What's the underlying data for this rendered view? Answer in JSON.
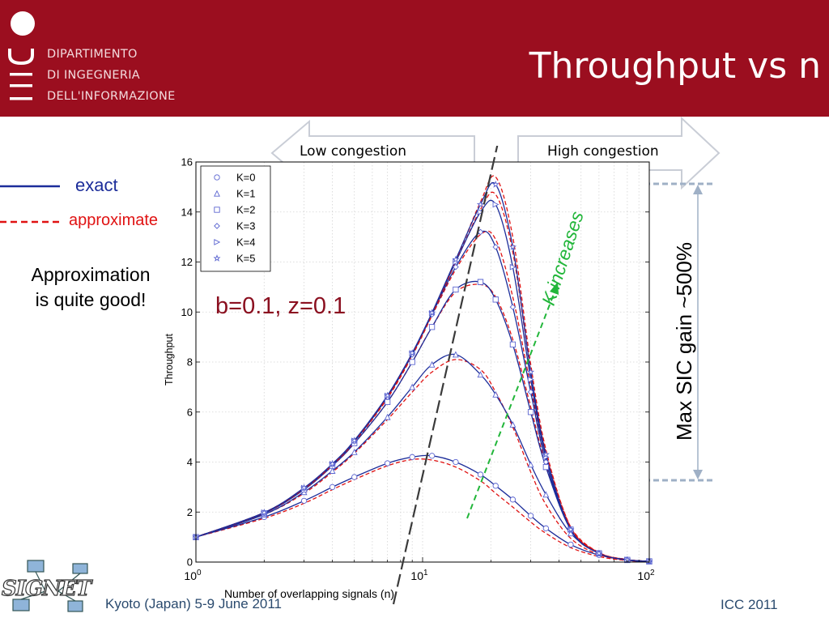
{
  "header": {
    "dept_lines": [
      "DIPARTIMENTO",
      "DI INGEGNERIA",
      "DELL'INFORMAZIONE"
    ],
    "title": "Throughput vs n"
  },
  "regions": {
    "low": "Low congestion",
    "high": "High congestion"
  },
  "legend_side": {
    "exact": "exact",
    "approximate": "approximate"
  },
  "note": {
    "line1": "Approximation",
    "line2": "is quite good!"
  },
  "params": "b=0.1, z=0.1",
  "k_label": "K increases",
  "gain_label": "Max SIC gain ~500%",
  "footer": {
    "left": "Kyoto (Japan) 5-9 June 2011",
    "right": "ICC 2011",
    "logo_text": "SIGNET"
  },
  "colors": {
    "header": "#9b0e1f",
    "exact": "#1c2d9a",
    "approximate": "#e01212",
    "k_arrow": "#22b63a",
    "guide": "#333333"
  },
  "chart_data": {
    "type": "line",
    "xlabel": "Number of overlapping signals (n)",
    "ylabel": "Throughput",
    "x_scale": "log",
    "xlim": [
      1,
      100
    ],
    "ylim": [
      0,
      16
    ],
    "yticks": [
      0,
      2,
      4,
      6,
      8,
      10,
      12,
      14,
      16
    ],
    "xticks": [
      1,
      10,
      100
    ],
    "xtick_labels": [
      {
        "base": "10",
        "exp": "0"
      },
      {
        "base": "10",
        "exp": "1"
      },
      {
        "base": "10",
        "exp": "2"
      }
    ],
    "grid": true,
    "legend_position": "top-left",
    "x": [
      1,
      2,
      3,
      4,
      5,
      7,
      9,
      11,
      14,
      18,
      21,
      25,
      30,
      35,
      45,
      60,
      80,
      100
    ],
    "series": [
      {
        "name": "K=0",
        "marker": "circle",
        "exact": [
          1.0,
          1.8,
          2.45,
          3.0,
          3.4,
          3.95,
          4.2,
          4.25,
          4.0,
          3.5,
          3.05,
          2.5,
          1.85,
          1.35,
          0.7,
          0.28,
          0.08,
          0.03
        ],
        "approx": [
          1.0,
          1.75,
          2.35,
          2.9,
          3.3,
          3.85,
          4.1,
          4.08,
          3.8,
          3.25,
          2.75,
          2.2,
          1.6,
          1.15,
          0.58,
          0.22,
          0.06,
          0.02
        ]
      },
      {
        "name": "K=1",
        "marker": "triangle-up",
        "exact": [
          1.0,
          1.9,
          2.8,
          3.65,
          4.4,
          5.8,
          7.0,
          7.9,
          8.3,
          7.5,
          6.7,
          5.5,
          3.9,
          2.7,
          1.15,
          0.35,
          0.08,
          0.03
        ],
        "approx": [
          1.0,
          1.9,
          2.75,
          3.6,
          4.35,
          5.7,
          6.8,
          7.6,
          8.1,
          7.7,
          6.8,
          5.4,
          3.6,
          2.3,
          0.95,
          0.3,
          0.07,
          0.02
        ]
      },
      {
        "name": "K=2",
        "marker": "square",
        "exact": [
          1.0,
          1.95,
          2.9,
          3.85,
          4.75,
          6.4,
          8.0,
          9.4,
          10.9,
          11.2,
          10.5,
          8.7,
          6.0,
          3.8,
          1.3,
          0.35,
          0.09,
          0.03
        ],
        "approx": [
          1.0,
          1.95,
          2.9,
          3.85,
          4.75,
          6.4,
          8.0,
          9.4,
          10.8,
          11.1,
          10.6,
          8.9,
          6.2,
          3.9,
          1.4,
          0.38,
          0.1,
          0.03
        ]
      },
      {
        "name": "K=3",
        "marker": "diamond",
        "exact": [
          1.0,
          1.97,
          2.95,
          3.9,
          4.82,
          6.6,
          8.3,
          9.9,
          11.8,
          13.2,
          12.6,
          10.2,
          6.8,
          4.0,
          1.3,
          0.35,
          0.09,
          0.03
        ],
        "approx": [
          1.0,
          1.97,
          2.93,
          3.88,
          4.8,
          6.55,
          8.25,
          9.85,
          11.7,
          13.1,
          12.9,
          10.6,
          7.0,
          4.2,
          1.4,
          0.38,
          0.1,
          0.03
        ]
      },
      {
        "name": "K=4",
        "marker": "triangle-right",
        "exact": [
          1.0,
          1.98,
          2.96,
          3.92,
          4.85,
          6.65,
          8.35,
          9.95,
          12.0,
          14.0,
          14.3,
          11.8,
          7.3,
          4.2,
          1.3,
          0.35,
          0.09,
          0.03
        ],
        "approx": [
          1.0,
          1.98,
          2.95,
          3.9,
          4.83,
          6.6,
          8.3,
          9.9,
          12.0,
          14.1,
          14.7,
          12.4,
          7.6,
          4.4,
          1.4,
          0.38,
          0.1,
          0.03
        ]
      },
      {
        "name": "K=5",
        "marker": "star",
        "exact": [
          1.0,
          1.98,
          2.97,
          3.93,
          4.86,
          6.66,
          8.36,
          9.97,
          12.1,
          14.3,
          15.1,
          12.6,
          7.6,
          4.3,
          1.3,
          0.35,
          0.09,
          0.03
        ],
        "approx": [
          1.0,
          1.98,
          2.96,
          3.91,
          4.84,
          6.62,
          8.32,
          9.93,
          12.05,
          14.4,
          15.4,
          13.0,
          7.9,
          4.5,
          1.4,
          0.38,
          0.1,
          0.03
        ]
      }
    ]
  }
}
